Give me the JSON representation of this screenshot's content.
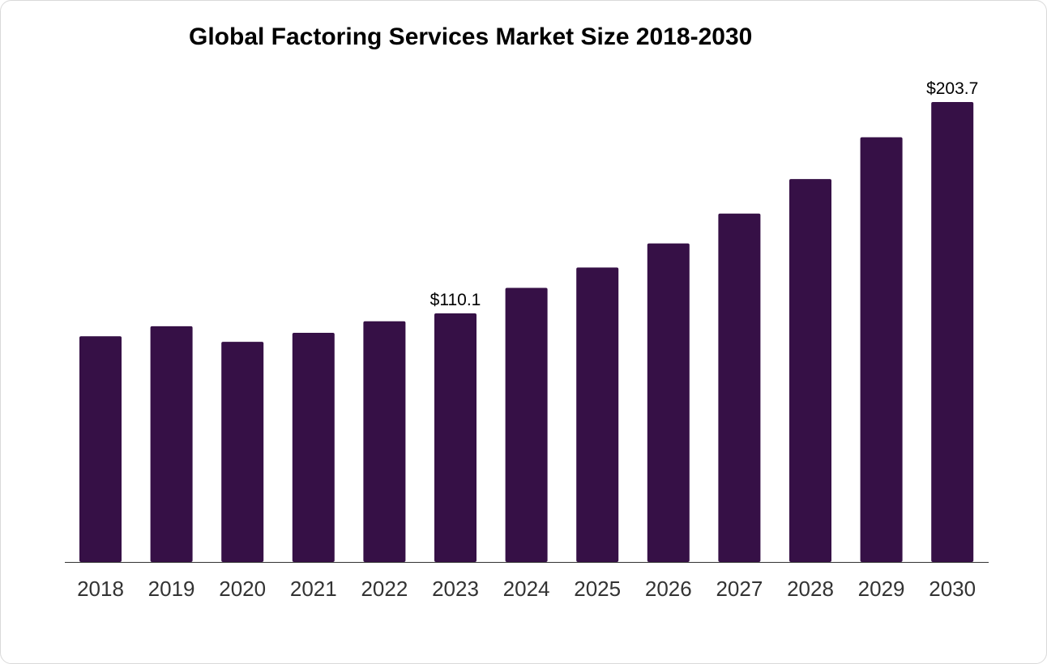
{
  "chart_data": {
    "type": "bar",
    "title": "Global Factoring Services Market Size 2018-2030",
    "xlabel": "",
    "ylabel": "",
    "categories": [
      "2018",
      "2019",
      "2020",
      "2021",
      "2022",
      "2023",
      "2024",
      "2025",
      "2026",
      "2027",
      "2028",
      "2029",
      "2030"
    ],
    "values": [
      100.0,
      104.4,
      97.5,
      101.5,
      106.6,
      110.1,
      121.4,
      130.4,
      141.1,
      154.3,
      169.6,
      188.1,
      203.7
    ],
    "data_labels": [
      {
        "category": "2023",
        "text": "$110.1"
      },
      {
        "category": "2030",
        "text": "$203.7"
      }
    ],
    "ylim": [
      0,
      203.7
    ],
    "grid": false,
    "legend": "none",
    "colors": {
      "bar": "#361046",
      "axis": "#333333"
    }
  }
}
